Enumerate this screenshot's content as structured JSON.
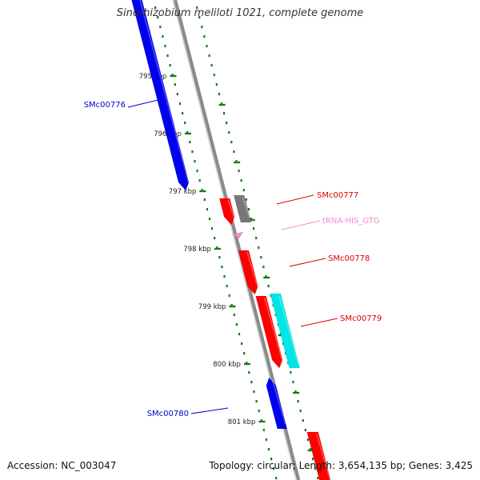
{
  "title": "Sinorhizobium meliloti 1021, complete genome",
  "footer": {
    "accession": "Accession: NC_003047",
    "topology": "Topology: circular; Length: 3,654,135 bp; Genes: 3,425"
  },
  "scale": {
    "unit": "kbp",
    "ticks": [
      {
        "label": "795 kbp"
      },
      {
        "label": "796 kbp"
      },
      {
        "label": "797 kbp"
      },
      {
        "label": "798 kbp"
      },
      {
        "label": "799 kbp"
      },
      {
        "label": "800 kbp"
      },
      {
        "label": "801 kbp"
      }
    ]
  },
  "colors": {
    "gene_forward_red": "#ff0000",
    "gene_reverse_blue": "#0000ee",
    "gene_grey": "#777777",
    "gene_cyan": "#00e5e5",
    "trna_pink": "#f08cc8",
    "tick_green": "#1b7a1b",
    "backbone_grey": "#888888",
    "label_blue": "#0000cc",
    "label_red": "#dd0000"
  },
  "features": [
    {
      "name": "SMc00776",
      "type": "CDS",
      "strand": "-",
      "color": "gene_reverse_blue",
      "label_color": "label_blue"
    },
    {
      "name": "SMc00777",
      "type": "CDS",
      "strand": "+",
      "color": "gene_forward_red",
      "label_color": "label_red"
    },
    {
      "name": "",
      "type": "CDS",
      "strand": "-",
      "color": "gene_grey",
      "label_color": ""
    },
    {
      "name": "tRNA-HIS_GTG",
      "type": "tRNA",
      "strand": "+",
      "color": "trna_pink",
      "label_color": "trna_pink"
    },
    {
      "name": "SMc00778",
      "type": "CDS",
      "strand": "+",
      "color": "gene_forward_red",
      "label_color": "label_red"
    },
    {
      "name": "SMc00779",
      "type": "CDS",
      "strand": "+",
      "color": "gene_forward_red",
      "label_color": "label_red"
    },
    {
      "name": "",
      "type": "CDS",
      "strand": "-",
      "color": "gene_cyan",
      "label_color": ""
    },
    {
      "name": "SMc00780",
      "type": "CDS",
      "strand": "-",
      "color": "gene_reverse_blue",
      "label_color": "label_blue"
    },
    {
      "name": "",
      "type": "CDS",
      "strand": "+",
      "color": "gene_forward_red",
      "label_color": ""
    }
  ]
}
